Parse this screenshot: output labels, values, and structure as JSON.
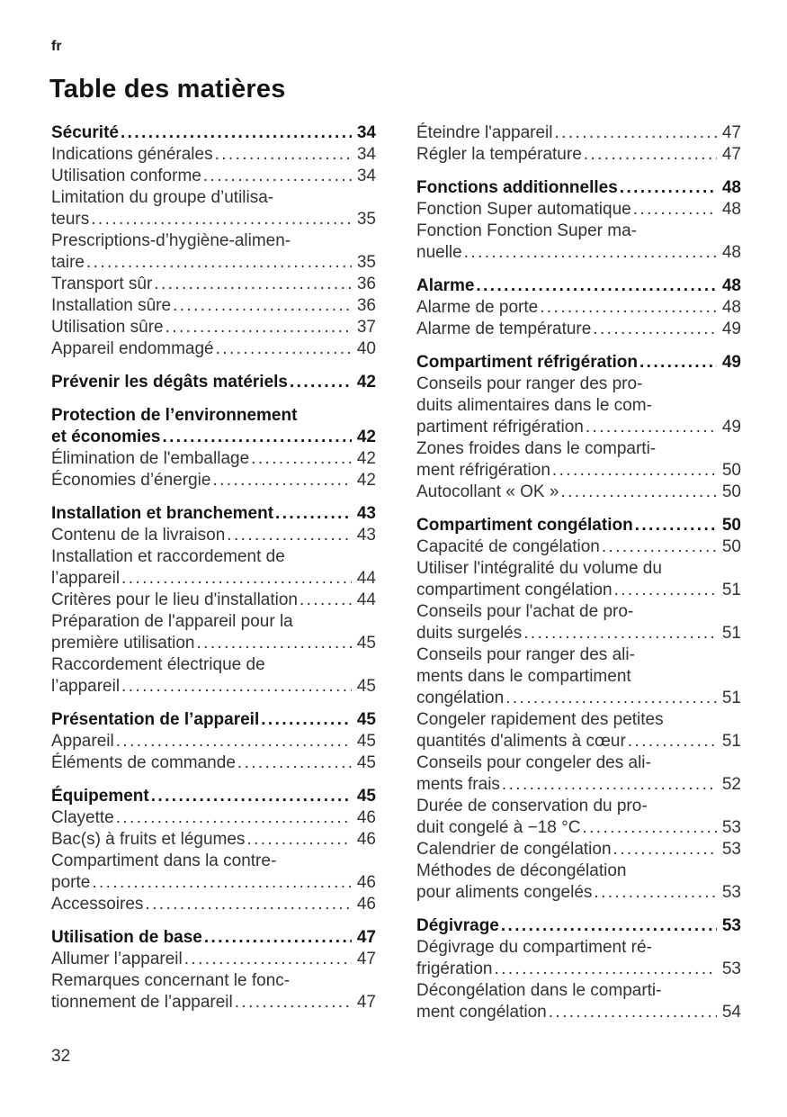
{
  "document": {
    "language_label": "fr",
    "title": "Table des matières"
  },
  "footer": {
    "page_number": "32"
  },
  "colors": {
    "background": "#ffffff",
    "body_text": "#333333",
    "heading_text": "#151515"
  },
  "toc": {
    "columns": [
      {
        "groups": [
          {
            "entries": [
              {
                "bold": true,
                "lines": [
                  "Sécurité"
                ],
                "page": "34"
              },
              {
                "bold": false,
                "lines": [
                  "Indications générales"
                ],
                "page": "34"
              },
              {
                "bold": false,
                "lines": [
                  "Utilisation conforme"
                ],
                "page": "34"
              },
              {
                "bold": false,
                "lines": [
                  "Limitation du groupe d’utilisa-",
                  "teurs"
                ],
                "page": "35"
              },
              {
                "bold": false,
                "lines": [
                  "Prescriptions-d’hygiène-alimen-",
                  "taire"
                ],
                "page": "35"
              },
              {
                "bold": false,
                "lines": [
                  "Transport sûr"
                ],
                "page": "36"
              },
              {
                "bold": false,
                "lines": [
                  "Installation sûre"
                ],
                "page": "36"
              },
              {
                "bold": false,
                "lines": [
                  "Utilisation sûre"
                ],
                "page": "37"
              },
              {
                "bold": false,
                "lines": [
                  "Appareil endommagé"
                ],
                "page": "40"
              }
            ]
          },
          {
            "entries": [
              {
                "bold": true,
                "lines": [
                  "Prévenir les dégâts matériels"
                ],
                "page": "42"
              }
            ]
          },
          {
            "entries": [
              {
                "bold": true,
                "lines": [
                  "Protection de l’environnement",
                  "et économies"
                ],
                "page": "42"
              },
              {
                "bold": false,
                "lines": [
                  "Élimination de l'emballage"
                ],
                "page": "42"
              },
              {
                "bold": false,
                "lines": [
                  "Économies d’énergie"
                ],
                "page": "42"
              }
            ]
          },
          {
            "entries": [
              {
                "bold": true,
                "lines": [
                  "Installation et branchement"
                ],
                "page": "43"
              },
              {
                "bold": false,
                "lines": [
                  "Contenu de la livraison"
                ],
                "page": "43"
              },
              {
                "bold": false,
                "lines": [
                  "Installation et raccordement de",
                  "l’appareil"
                ],
                "page": "44"
              },
              {
                "bold": false,
                "lines": [
                  "Critères pour le lieu d'installation"
                ],
                "page": "44"
              },
              {
                "bold": false,
                "lines": [
                  "Préparation de l'appareil pour la",
                  "première utilisation"
                ],
                "page": "45"
              },
              {
                "bold": false,
                "lines": [
                  "Raccordement électrique de",
                  "l’appareil"
                ],
                "page": "45"
              }
            ]
          },
          {
            "entries": [
              {
                "bold": true,
                "lines": [
                  "Présentation de l’appareil"
                ],
                "page": "45"
              },
              {
                "bold": false,
                "lines": [
                  "Appareil"
                ],
                "page": "45"
              },
              {
                "bold": false,
                "lines": [
                  "Éléments de commande"
                ],
                "page": "45"
              }
            ]
          },
          {
            "entries": [
              {
                "bold": true,
                "lines": [
                  "Équipement"
                ],
                "page": "45"
              },
              {
                "bold": false,
                "lines": [
                  "Clayette"
                ],
                "page": "46"
              },
              {
                "bold": false,
                "lines": [
                  "Bac(s) à fruits et légumes"
                ],
                "page": "46"
              },
              {
                "bold": false,
                "lines": [
                  "Compartiment dans la contre-",
                  "porte"
                ],
                "page": "46"
              },
              {
                "bold": false,
                "lines": [
                  "Accessoires"
                ],
                "page": "46"
              }
            ]
          },
          {
            "entries": [
              {
                "bold": true,
                "lines": [
                  "Utilisation de base"
                ],
                "page": "47"
              },
              {
                "bold": false,
                "lines": [
                  "Allumer l’appareil"
                ],
                "page": "47"
              },
              {
                "bold": false,
                "lines": [
                  "Remarques concernant le fonc-",
                  "tionnement de l’appareil"
                ],
                "page": "47"
              }
            ]
          }
        ]
      },
      {
        "groups": [
          {
            "entries": [
              {
                "bold": false,
                "lines": [
                  "Éteindre l'appareil"
                ],
                "page": "47"
              },
              {
                "bold": false,
                "lines": [
                  "Régler la température"
                ],
                "page": "47"
              }
            ]
          },
          {
            "entries": [
              {
                "bold": true,
                "lines": [
                  "Fonctions additionnelles"
                ],
                "page": "48"
              },
              {
                "bold": false,
                "lines": [
                  "Fonction Super automatique"
                ],
                "page": "48"
              },
              {
                "bold": false,
                "lines": [
                  "Fonction Fonction Super ma-",
                  "nuelle"
                ],
                "page": "48"
              }
            ]
          },
          {
            "entries": [
              {
                "bold": true,
                "lines": [
                  "Alarme"
                ],
                "page": "48"
              },
              {
                "bold": false,
                "lines": [
                  "Alarme de porte"
                ],
                "page": "48"
              },
              {
                "bold": false,
                "lines": [
                  "Alarme de température"
                ],
                "page": "49"
              }
            ]
          },
          {
            "entries": [
              {
                "bold": true,
                "lines": [
                  "Compartiment réfrigération"
                ],
                "page": "49"
              },
              {
                "bold": false,
                "lines": [
                  "Conseils pour ranger des pro-",
                  "duits alimentaires dans le com-",
                  "partiment réfrigération"
                ],
                "page": "49"
              },
              {
                "bold": false,
                "lines": [
                  "Zones froides dans le comparti-",
                  "ment réfrigération"
                ],
                "page": "50"
              },
              {
                "bold": false,
                "lines": [
                  "Autocollant « OK »"
                ],
                "page": "50"
              }
            ]
          },
          {
            "entries": [
              {
                "bold": true,
                "lines": [
                  "Compartiment congélation"
                ],
                "page": "50"
              },
              {
                "bold": false,
                "lines": [
                  "Capacité de congélation"
                ],
                "page": "50"
              },
              {
                "bold": false,
                "lines": [
                  "Utiliser l'intégralité du volume du",
                  "compartiment congélation"
                ],
                "page": "51"
              },
              {
                "bold": false,
                "lines": [
                  "Conseils pour l'achat de pro-",
                  "duits surgelés"
                ],
                "page": "51"
              },
              {
                "bold": false,
                "lines": [
                  "Conseils pour ranger des ali-",
                  "ments dans le compartiment",
                  "congélation"
                ],
                "page": "51"
              },
              {
                "bold": false,
                "lines": [
                  "Congeler rapidement des petites",
                  "quantités d'aliments à cœur"
                ],
                "page": "51"
              },
              {
                "bold": false,
                "lines": [
                  "Conseils pour congeler des ali-",
                  "ments frais"
                ],
                "page": "52"
              },
              {
                "bold": false,
                "lines": [
                  "Durée de conservation du pro-",
                  "duit congelé à −18 °C"
                ],
                "page": "53"
              },
              {
                "bold": false,
                "lines": [
                  "Calendrier de congélation"
                ],
                "page": "53"
              },
              {
                "bold": false,
                "lines": [
                  "Méthodes de décongélation",
                  "pour aliments congelés"
                ],
                "page": "53"
              }
            ]
          },
          {
            "entries": [
              {
                "bold": true,
                "lines": [
                  "Dégivrage"
                ],
                "page": "53"
              },
              {
                "bold": false,
                "lines": [
                  "Dégivrage du compartiment ré-",
                  "frigération"
                ],
                "page": "53"
              },
              {
                "bold": false,
                "lines": [
                  "Décongélation dans le comparti-",
                  "ment congélation"
                ],
                "page": "54"
              }
            ]
          }
        ]
      }
    ]
  }
}
